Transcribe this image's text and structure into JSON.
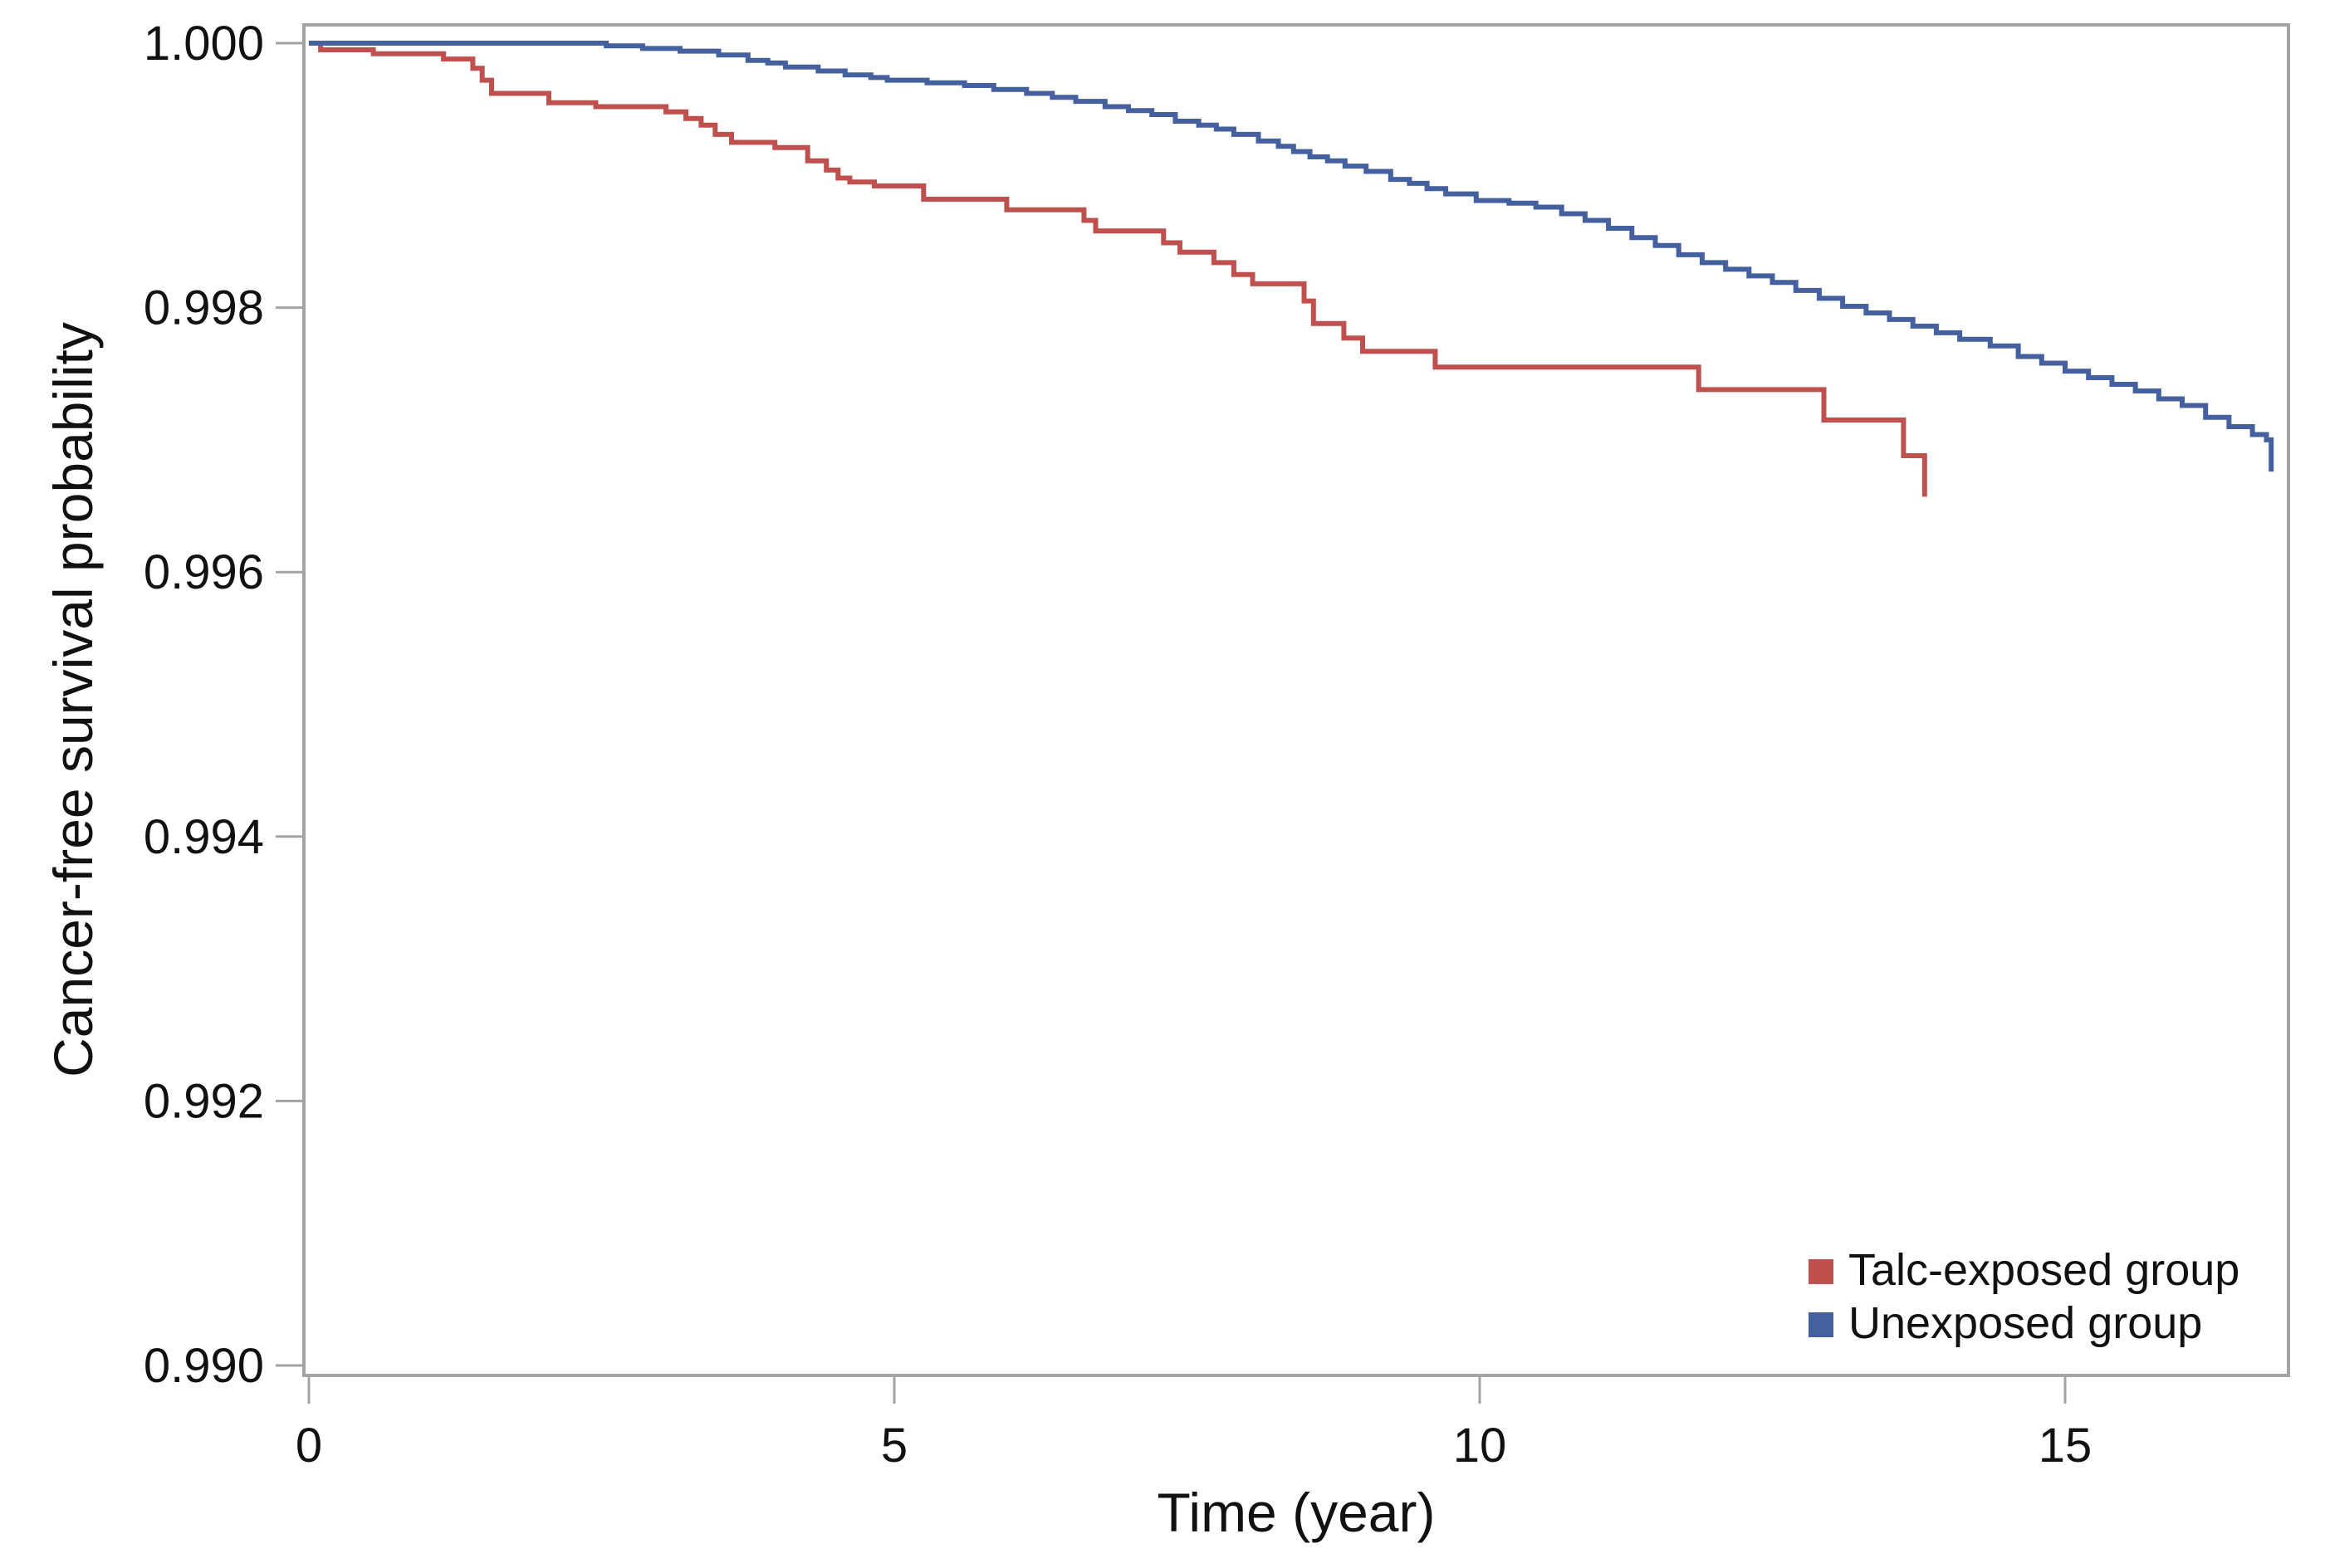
{
  "figure": {
    "background": "#ffffff",
    "axis_color": "#a3a3a3",
    "text_color": "#111111"
  },
  "chart_data": {
    "type": "line",
    "subtype": "kaplan-meier-step-survival",
    "title": "",
    "xlabel": "Time (year)",
    "ylabel": "Cancer-free survival probability",
    "xlim": [
      0,
      16.91
    ],
    "ylim": [
      0.99,
      1.0
    ],
    "grid": false,
    "legend_position": "inside-bottom-right",
    "x_ticks": [
      {
        "label": "0",
        "value": 0
      },
      {
        "label": "5",
        "value": 5
      },
      {
        "label": "10",
        "value": 10
      },
      {
        "label": "15",
        "value": 15
      }
    ],
    "y_ticks": [
      {
        "label": "1.000",
        "value": 1.0
      },
      {
        "label": "0.998",
        "value": 0.998
      },
      {
        "label": "0.996",
        "value": 0.996
      },
      {
        "label": "0.994",
        "value": 0.994
      },
      {
        "label": "0.992",
        "value": 0.992
      },
      {
        "label": "0.990",
        "value": 0.99
      }
    ],
    "series": [
      {
        "name": "Talc-exposed group",
        "color": "#c0504d",
        "points": [
          [
            0,
            1.0
          ],
          [
            0.1,
            0.99995
          ],
          [
            0.55,
            0.99992
          ],
          [
            1.15,
            0.99988
          ],
          [
            1.4,
            0.99981
          ],
          [
            1.48,
            0.99972
          ],
          [
            1.56,
            0.99962
          ],
          [
            2.05,
            0.99955
          ],
          [
            2.45,
            0.99952
          ],
          [
            3.05,
            0.99948
          ],
          [
            3.22,
            0.99943
          ],
          [
            3.35,
            0.99938
          ],
          [
            3.47,
            0.99931
          ],
          [
            3.61,
            0.99925
          ],
          [
            3.98,
            0.99921
          ],
          [
            4.26,
            0.99911
          ],
          [
            4.42,
            0.99904
          ],
          [
            4.52,
            0.99898
          ],
          [
            4.62,
            0.99895
          ],
          [
            4.83,
            0.99892
          ],
          [
            5.25,
            0.99882
          ],
          [
            5.96,
            0.99874
          ],
          [
            6.62,
            0.99866
          ],
          [
            6.72,
            0.99858
          ],
          [
            7.3,
            0.99849
          ],
          [
            7.44,
            0.99842
          ],
          [
            7.73,
            0.99834
          ],
          [
            7.9,
            0.99825
          ],
          [
            8.06,
            0.99818
          ],
          [
            8.5,
            0.99805
          ],
          [
            8.58,
            0.99788
          ],
          [
            8.84,
            0.99777
          ],
          [
            9.0,
            0.99767
          ],
          [
            9.62,
            0.99755
          ],
          [
            11.87,
            0.99738
          ],
          [
            12.94,
            0.99715
          ],
          [
            13.62,
            0.99688
          ],
          [
            13.8,
            0.99657
          ]
        ]
      },
      {
        "name": "Unexposed group",
        "color": "#44609e",
        "points": [
          [
            0,
            1.0
          ],
          [
            2.54,
            0.99998
          ],
          [
            2.85,
            0.99996
          ],
          [
            3.17,
            0.99994
          ],
          [
            3.5,
            0.99991
          ],
          [
            3.75,
            0.99987
          ],
          [
            3.92,
            0.99985
          ],
          [
            4.07,
            0.99982
          ],
          [
            4.35,
            0.99979
          ],
          [
            4.58,
            0.99976
          ],
          [
            4.8,
            0.99974
          ],
          [
            4.94,
            0.99972
          ],
          [
            5.28,
            0.9997
          ],
          [
            5.6,
            0.99968
          ],
          [
            5.85,
            0.99965
          ],
          [
            6.13,
            0.99962
          ],
          [
            6.35,
            0.99959
          ],
          [
            6.55,
            0.99956
          ],
          [
            6.8,
            0.99952
          ],
          [
            7.0,
            0.99949
          ],
          [
            7.2,
            0.99946
          ],
          [
            7.4,
            0.99941
          ],
          [
            7.6,
            0.99938
          ],
          [
            7.75,
            0.99935
          ],
          [
            7.9,
            0.99931
          ],
          [
            8.11,
            0.99926
          ],
          [
            8.28,
            0.99922
          ],
          [
            8.41,
            0.99918
          ],
          [
            8.55,
            0.99914
          ],
          [
            8.7,
            0.99911
          ],
          [
            8.85,
            0.99907
          ],
          [
            9.03,
            0.99903
          ],
          [
            9.24,
            0.99897
          ],
          [
            9.4,
            0.99894
          ],
          [
            9.55,
            0.9989
          ],
          [
            9.71,
            0.99886
          ],
          [
            9.97,
            0.99881
          ],
          [
            10.25,
            0.99879
          ],
          [
            10.48,
            0.99876
          ],
          [
            10.7,
            0.99871
          ],
          [
            10.9,
            0.99866
          ],
          [
            11.1,
            0.9986
          ],
          [
            11.3,
            0.99853
          ],
          [
            11.5,
            0.99847
          ],
          [
            11.7,
            0.9984
          ],
          [
            11.9,
            0.99834
          ],
          [
            12.1,
            0.99829
          ],
          [
            12.3,
            0.99824
          ],
          [
            12.5,
            0.99819
          ],
          [
            12.7,
            0.99813
          ],
          [
            12.9,
            0.99807
          ],
          [
            13.1,
            0.99801
          ],
          [
            13.3,
            0.99796
          ],
          [
            13.5,
            0.99791
          ],
          [
            13.7,
            0.99786
          ],
          [
            13.9,
            0.99781
          ],
          [
            14.1,
            0.99776
          ],
          [
            14.36,
            0.99771
          ],
          [
            14.6,
            0.99763
          ],
          [
            14.8,
            0.99758
          ],
          [
            15.0,
            0.99752
          ],
          [
            15.2,
            0.99747
          ],
          [
            15.4,
            0.99742
          ],
          [
            15.6,
            0.99737
          ],
          [
            15.8,
            0.99731
          ],
          [
            16.0,
            0.99726
          ],
          [
            16.2,
            0.99717
          ],
          [
            16.4,
            0.9971
          ],
          [
            16.6,
            0.99704
          ],
          [
            16.72,
            0.997
          ],
          [
            16.76,
            0.99676
          ]
        ]
      }
    ]
  },
  "legend": {
    "items": [
      {
        "label": "Talc-exposed group",
        "color": "#c0504d"
      },
      {
        "label": "Unexposed group",
        "color": "#44609e"
      }
    ]
  }
}
